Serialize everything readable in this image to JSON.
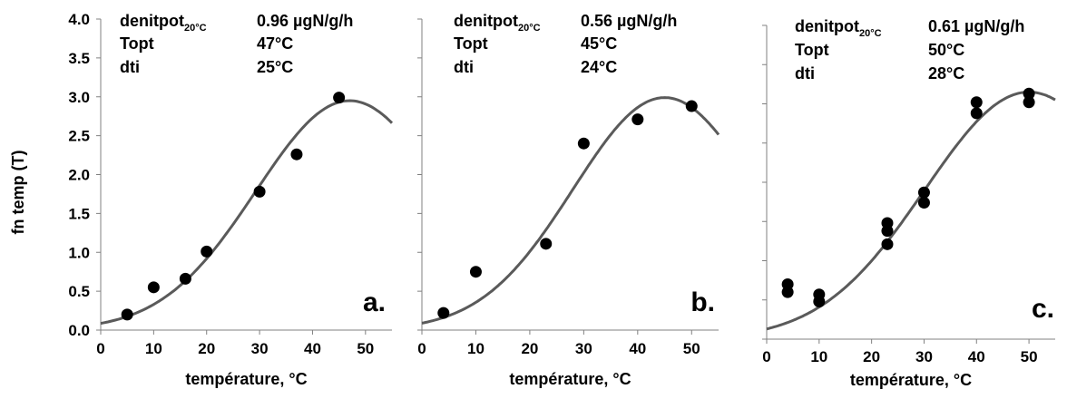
{
  "y_axis_label": "fn temp (T)",
  "chart_data": [
    {
      "type": "scatter",
      "panel_label": "a.",
      "xlabel": "température, °C",
      "ylabel": "fn temp (T)",
      "xlim": [
        0,
        55
      ],
      "ylim": [
        0,
        4.0
      ],
      "xticks": [
        "0",
        "10",
        "20",
        "30",
        "40",
        "50"
      ],
      "yticks": [
        "0.0",
        "0.5",
        "1.0",
        "1.5",
        "2.0",
        "2.5",
        "3.0",
        "3.5",
        "4.0"
      ],
      "info": [
        {
          "label": "denitpot",
          "sub": "20°C",
          "value": "0.96 µgN/g/h"
        },
        {
          "label": "Topt",
          "sub": "",
          "value": "47°C"
        },
        {
          "label": "dti",
          "sub": "",
          "value": "25°C"
        }
      ],
      "fit": {
        "topt": 47,
        "dti": 25,
        "peak": 2.95
      },
      "series": [
        {
          "x": [
            5,
            10,
            16,
            20,
            30,
            37,
            45
          ],
          "y": [
            0.2,
            0.55,
            0.66,
            1.01,
            1.78,
            2.26,
            2.99
          ]
        }
      ]
    },
    {
      "type": "scatter",
      "panel_label": "b.",
      "xlabel": "température, °C",
      "xlim": [
        0,
        55
      ],
      "ylim": [
        0,
        4.0
      ],
      "xticks": [
        "0",
        "10",
        "20",
        "30",
        "40",
        "50"
      ],
      "info": [
        {
          "label": "denitpot",
          "sub": "20°C",
          "value": "0.56 µgN/g/h"
        },
        {
          "label": "Topt",
          "sub": "",
          "value": "45°C"
        },
        {
          "label": "dti",
          "sub": "",
          "value": "24°C"
        }
      ],
      "fit": {
        "topt": 45,
        "dti": 24,
        "peak": 2.99
      },
      "series": [
        {
          "x": [
            4,
            10,
            23,
            30,
            40,
            50
          ],
          "y": [
            0.22,
            0.75,
            1.11,
            2.4,
            2.71,
            2.88
          ]
        }
      ]
    },
    {
      "type": "scatter",
      "panel_label": "c.",
      "xlabel": "température, °C",
      "xlim": [
        0,
        55
      ],
      "ylim": [
        0,
        4.0
      ],
      "xticks": [
        "0",
        "10",
        "20",
        "30",
        "40",
        "50"
      ],
      "info": [
        {
          "label": "denitpot",
          "sub": "20°C",
          "value": "0.61 µgN/g/h"
        },
        {
          "label": "Topt",
          "sub": "",
          "value": "50°C"
        },
        {
          "label": "dti",
          "sub": "",
          "value": "28°C"
        }
      ],
      "fit": {
        "topt": 50,
        "dti": 28,
        "peak": 3.15
      },
      "series": [
        {
          "x": [
            4,
            4,
            10,
            10,
            23,
            23,
            23,
            30,
            30,
            40,
            40,
            50,
            50
          ],
          "y": [
            0.6,
            0.7,
            0.48,
            0.57,
            1.21,
            1.38,
            1.48,
            1.74,
            1.87,
            2.88,
            3.02,
            3.02,
            3.13
          ]
        }
      ]
    }
  ]
}
